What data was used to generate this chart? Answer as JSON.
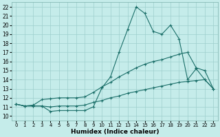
{
  "xlabel": "Humidex (Indice chaleur)",
  "background_color": "#c5ecea",
  "grid_color": "#9ecfcc",
  "line_color": "#1a6e68",
  "xlim": [
    -0.5,
    23.5
  ],
  "ylim": [
    9.5,
    22.5
  ],
  "xticks": [
    0,
    1,
    2,
    3,
    4,
    5,
    6,
    7,
    8,
    9,
    10,
    11,
    12,
    13,
    14,
    15,
    16,
    17,
    18,
    19,
    20,
    21,
    22,
    23
  ],
  "yticks": [
    10,
    11,
    12,
    13,
    14,
    15,
    16,
    17,
    18,
    19,
    20,
    21,
    22
  ],
  "line1_x": [
    0,
    1,
    2,
    3,
    4,
    5,
    6,
    7,
    8,
    9,
    10,
    11,
    12,
    13,
    14,
    15,
    16,
    17,
    18,
    19,
    20,
    21,
    22,
    23
  ],
  "line1_y": [
    11.3,
    11.1,
    11.1,
    11.1,
    10.5,
    10.6,
    10.6,
    10.6,
    10.6,
    11.0,
    13.1,
    14.3,
    17.0,
    19.5,
    22.0,
    21.3,
    19.3,
    19.0,
    20.0,
    18.5,
    14.0,
    15.2,
    14.0,
    13.0
  ],
  "line2_x": [
    0,
    1,
    2,
    3,
    4,
    5,
    6,
    7,
    8,
    9,
    10,
    11,
    12,
    13,
    14,
    15,
    16,
    17,
    18,
    19,
    20,
    21,
    22,
    23
  ],
  "line2_y": [
    11.3,
    11.1,
    11.2,
    11.8,
    11.9,
    12.0,
    12.0,
    12.0,
    12.1,
    12.6,
    13.2,
    13.7,
    14.3,
    14.8,
    15.3,
    15.7,
    16.0,
    16.2,
    16.5,
    16.8,
    17.0,
    15.3,
    15.0,
    13.0
  ],
  "line3_x": [
    0,
    1,
    2,
    3,
    4,
    5,
    6,
    7,
    8,
    9,
    10,
    11,
    12,
    13,
    14,
    15,
    16,
    17,
    18,
    19,
    20,
    21,
    22,
    23
  ],
  "line3_y": [
    11.3,
    11.1,
    11.1,
    11.1,
    11.0,
    11.1,
    11.1,
    11.1,
    11.2,
    11.5,
    11.7,
    12.0,
    12.2,
    12.5,
    12.7,
    12.9,
    13.1,
    13.3,
    13.5,
    13.7,
    13.8,
    13.9,
    14.0,
    13.0
  ]
}
